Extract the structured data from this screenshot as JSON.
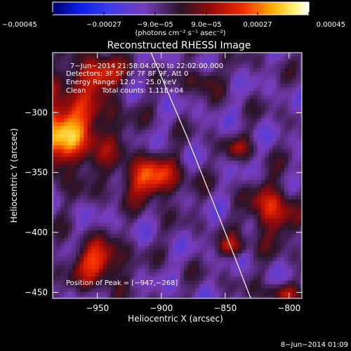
{
  "chart_data": {
    "type": "heatmap",
    "title": "Reconstructed RHESSI Image",
    "xlabel": "Heliocentric X (arcsec)",
    "ylabel": "Heliocentric Y (arcsec)",
    "xlim": [
      -985,
      -790
    ],
    "ylim": [
      -455,
      -250
    ],
    "xticks": [
      -950,
      -900,
      -850,
      -800
    ],
    "xtick_labels": [
      "−950",
      "−900",
      "−850",
      "−800"
    ],
    "yticks": [
      -300,
      -350,
      -400,
      -450
    ],
    "ytick_labels": [
      "−300",
      "−350",
      "−400",
      "−450"
    ],
    "colorbar": {
      "range": [
        -0.00045,
        0.00045
      ],
      "ticks": [
        -0.00045,
        -0.00027,
        -9e-05,
        9e-05,
        0.00027,
        0.00045
      ],
      "tick_labels": [
        "−0.00045",
        "−0.00027",
        "−9.0e−05",
        "9.0e−05",
        "0.00027",
        "0.00045"
      ],
      "units_label": "(photons cm⁻² s⁻¹ asec⁻²)"
    },
    "annotations": [
      "7−Jun−2014 21:58:04.000 to 22:02:00.000",
      "Detectors: 3F 5F 6F 7F 8F 9F, Att 0",
      "Energy Range: 12.0 − 25.0 keV",
      "Clean",
      "Total counts: 1.11E+04"
    ],
    "peak_label": "Position of Peak = [−947,−268]",
    "peak": [
      -947,
      -268
    ],
    "limb_curve": [
      [
        -908,
        -250
      ],
      [
        -880,
        -320
      ],
      [
        -850,
        -400
      ],
      [
        -830,
        -455
      ]
    ],
    "sources": [
      {
        "x": -980,
        "y": -315,
        "sx": 26,
        "sy": 22,
        "amp": 0.00042
      },
      {
        "x": -950,
        "y": -268,
        "sx": 14,
        "sy": 10,
        "amp": 0.0003
      },
      {
        "x": -908,
        "y": -355,
        "sx": 16,
        "sy": 12,
        "amp": 0.00033
      },
      {
        "x": -950,
        "y": -425,
        "sx": 14,
        "sy": 12,
        "amp": 0.00031
      },
      {
        "x": -813,
        "y": -382,
        "sx": 12,
        "sy": 16,
        "amp": 0.00027
      },
      {
        "x": -845,
        "y": -412,
        "sx": 8,
        "sy": 6,
        "amp": 0.0002
      },
      {
        "x": -805,
        "y": -450,
        "sx": 10,
        "sy": 6,
        "amp": 0.00018
      },
      {
        "x": -868,
        "y": -272,
        "sx": 9,
        "sy": 7,
        "amp": 0.00016
      },
      {
        "x": -840,
        "y": -330,
        "sx": 8,
        "sy": 6,
        "amp": 0.00014
      }
    ],
    "background_level": -9e-05
  },
  "footer": {
    "date": "8−Jun−2014 01:09"
  }
}
